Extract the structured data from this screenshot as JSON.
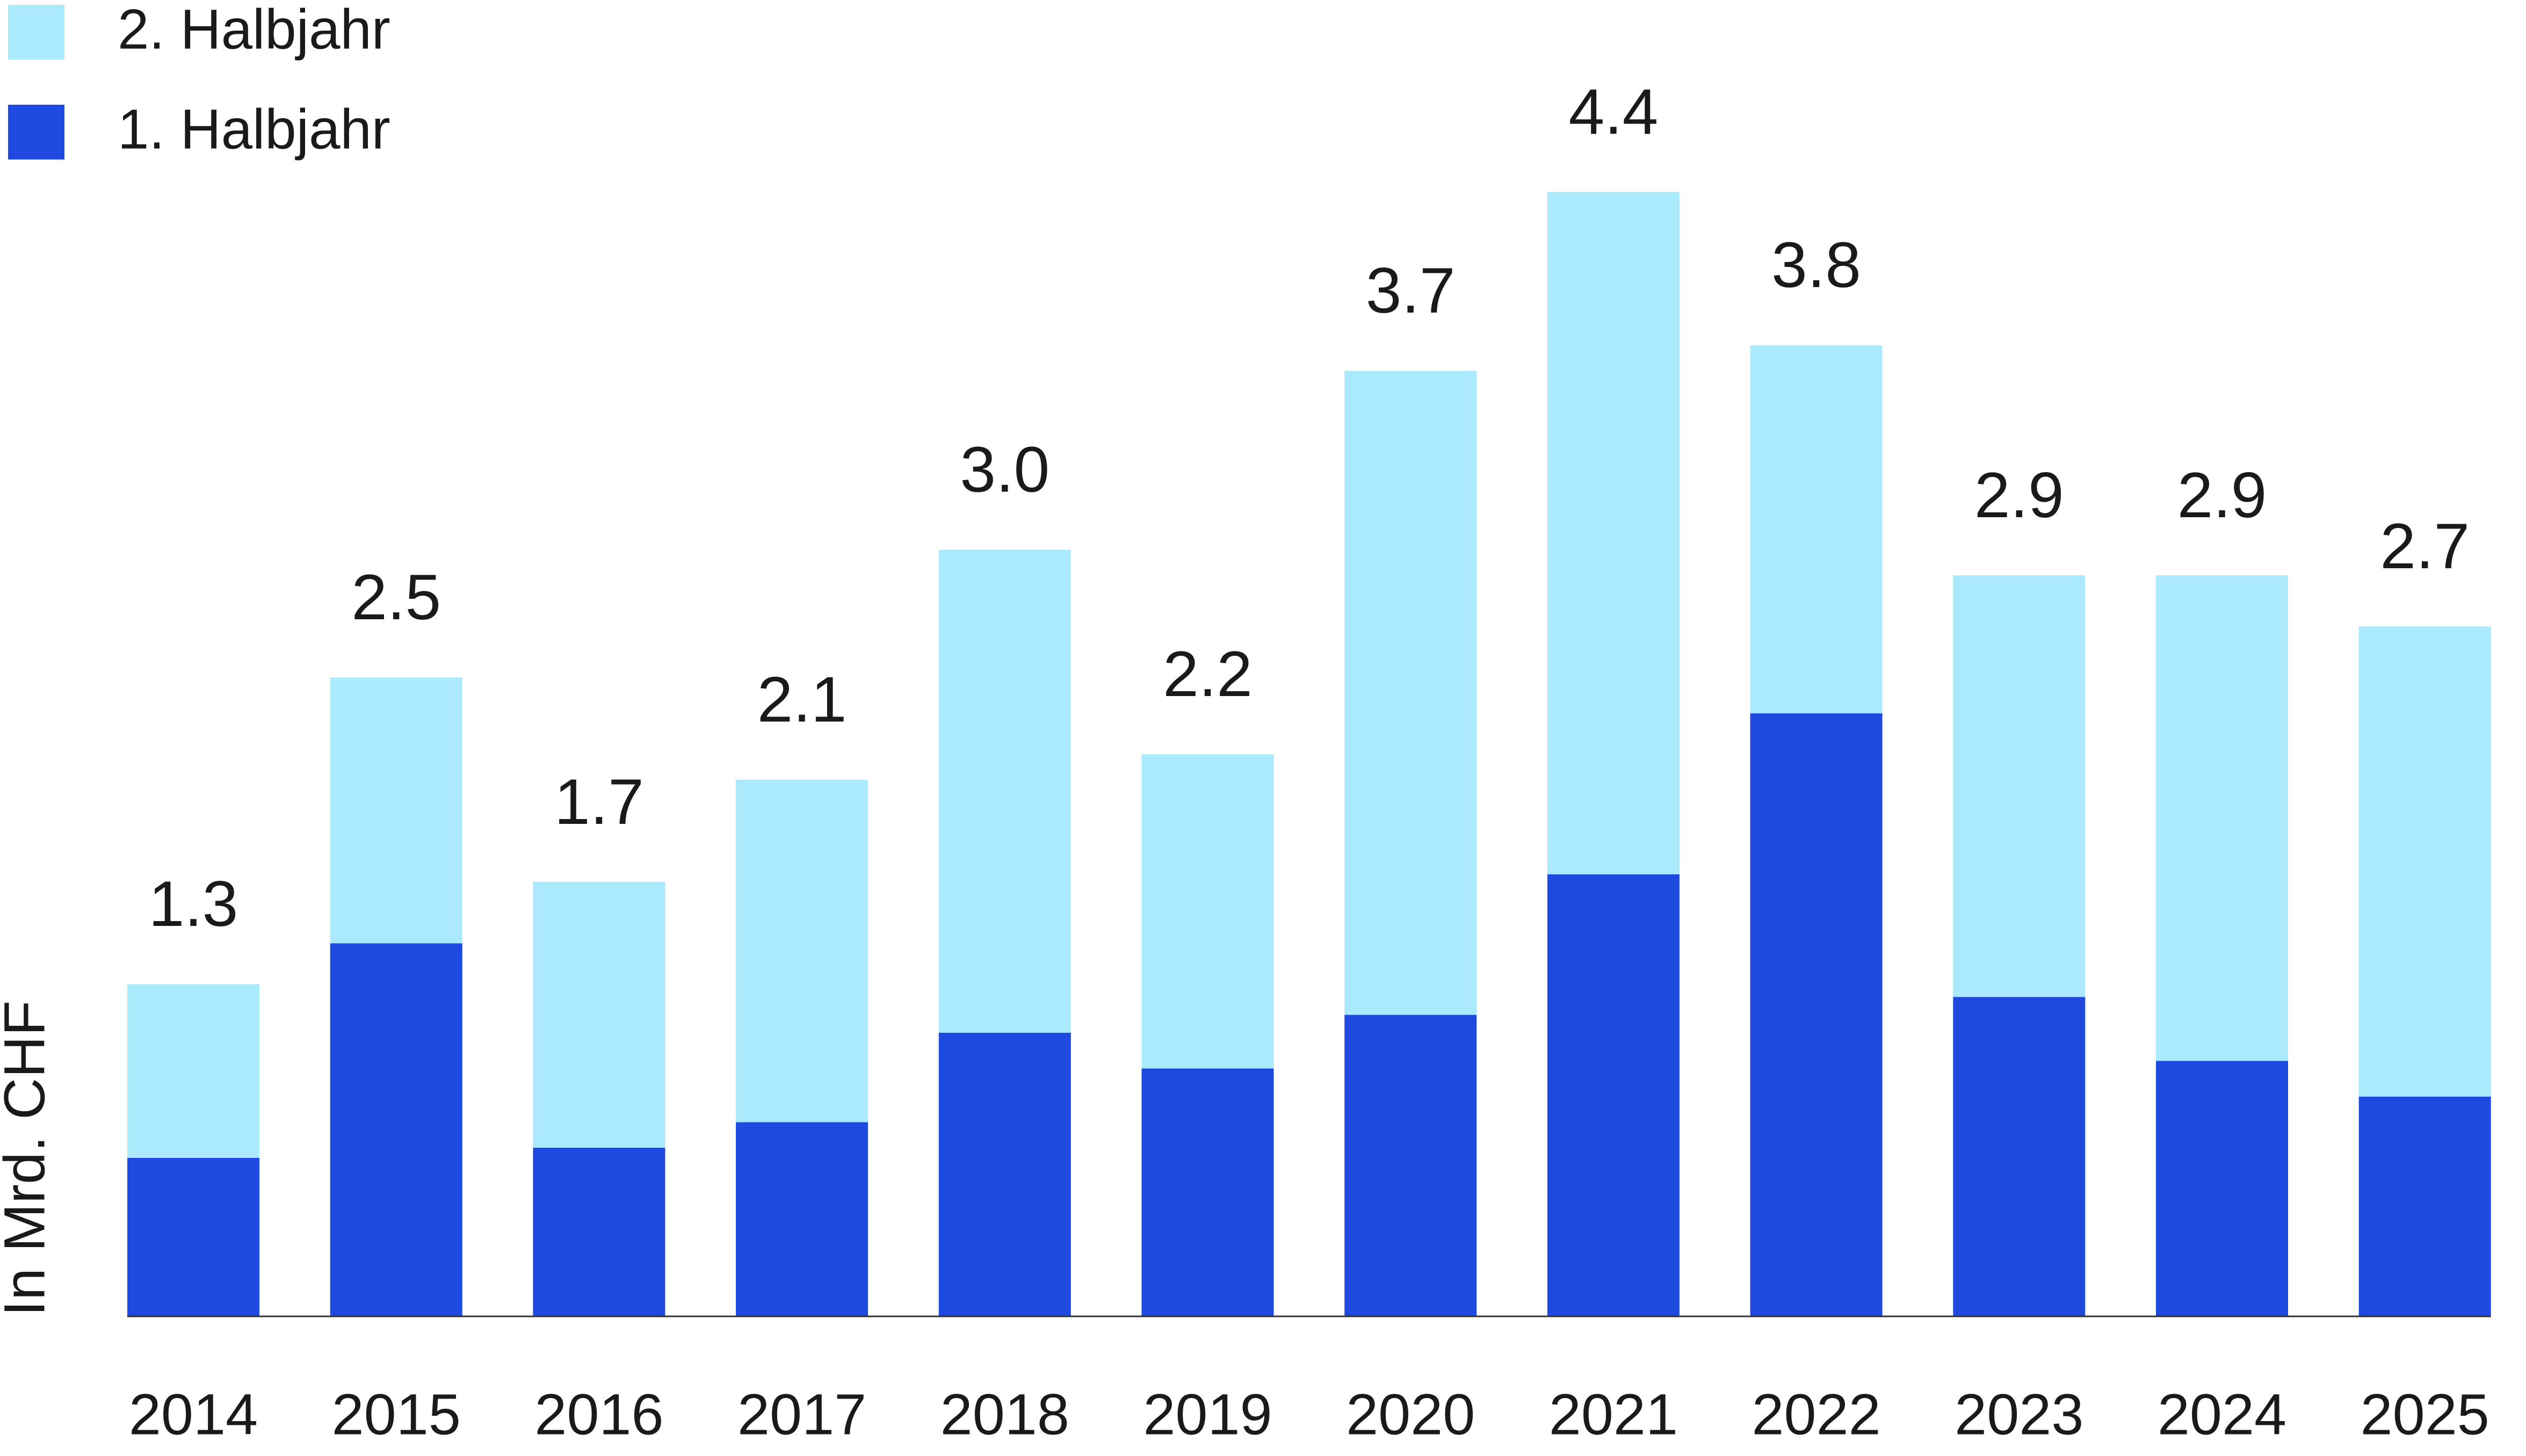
{
  "chart_data": {
    "type": "stacked_bar",
    "y_label": "In Mrd. CHF",
    "categories": [
      "2014",
      "2015",
      "2016",
      "2017",
      "2018",
      "2019",
      "2020",
      "2021",
      "2022",
      "2023",
      "2024",
      "2025"
    ],
    "series": [
      {
        "name": "1. Halbjahr",
        "color": "#1f4adf",
        "values": [
          0.62,
          1.46,
          0.66,
          0.76,
          1.11,
          0.97,
          1.18,
          1.73,
          2.36,
          1.25,
          1.0,
          0.86
        ]
      },
      {
        "name": "2. Halbjahr",
        "color": "#aaeafc",
        "values": [
          0.68,
          1.04,
          1.04,
          1.34,
          1.89,
          1.23,
          2.52,
          2.67,
          1.44,
          1.65,
          1.9,
          1.84
        ]
      }
    ],
    "totals": [
      1.3,
      2.5,
      1.7,
      2.1,
      3.0,
      2.2,
      3.7,
      4.4,
      3.8,
      2.9,
      2.9,
      2.7
    ],
    "total_labels": [
      "1.3",
      "2.5",
      "1.7",
      "2.1",
      "3.0",
      "2.2",
      "3.7",
      "4.4",
      "3.8",
      "2.9",
      "2.9",
      "2.7"
    ],
    "ylim": [
      0,
      5
    ],
    "legend": "top-left"
  }
}
